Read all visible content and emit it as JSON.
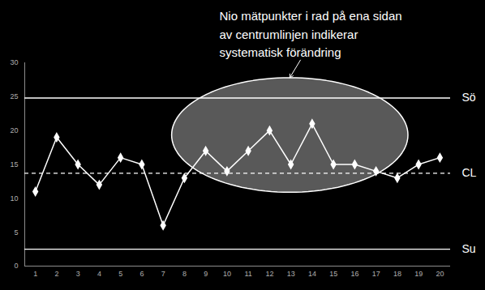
{
  "chart_data": {
    "type": "line",
    "x": [
      1,
      2,
      3,
      4,
      5,
      6,
      7,
      8,
      9,
      10,
      11,
      12,
      13,
      14,
      15,
      16,
      17,
      18,
      19,
      20
    ],
    "values": [
      11,
      19,
      15,
      12,
      16,
      15,
      6,
      13,
      17,
      14,
      17,
      20,
      15,
      21,
      15,
      15,
      14,
      13,
      15,
      16
    ],
    "color": "#ffffff",
    "marker": "diamond",
    "xlim": [
      0.5,
      20.5
    ],
    "xticks": [
      1,
      2,
      3,
      4,
      5,
      6,
      7,
      8,
      9,
      10,
      11,
      12,
      13,
      14,
      15,
      16,
      17,
      18,
      19,
      20
    ],
    "ylim": [
      0,
      30
    ],
    "yticks": [
      0,
      5,
      10,
      15,
      20,
      25,
      30
    ],
    "grid": false,
    "control_lines": [
      {
        "name": "Sö",
        "value": 24.8,
        "line_style": "solid"
      },
      {
        "name": "CL",
        "value": 13.7,
        "line_style": "dashed"
      },
      {
        "name": "Su",
        "value": 2.5,
        "line_style": "solid"
      }
    ],
    "annotation": {
      "text": "Nio mätpunkter i rad på ena sidan\nav centrumlinjen indikerar\nsystematisk förändring",
      "ellipse": {
        "x_range": [
          7.4,
          18.5
        ],
        "y_range": [
          10.9,
          27.8
        ]
      }
    }
  }
}
